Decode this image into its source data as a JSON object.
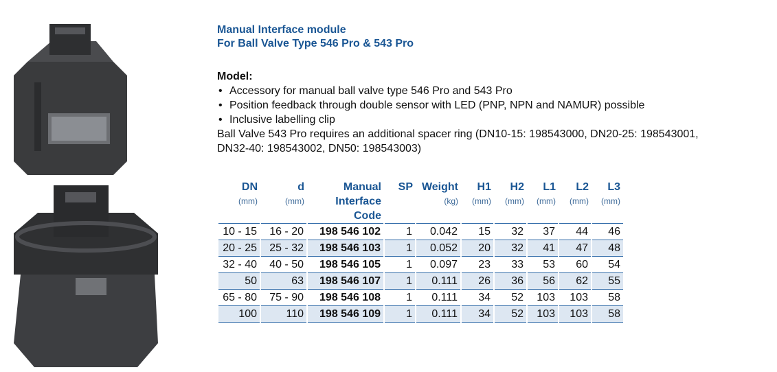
{
  "header": {
    "title": "Manual Interface module",
    "subtitle": "For Ball Valve Type 546 Pro & 543 Pro"
  },
  "model": {
    "heading": "Model:",
    "bullets": [
      "Accessory for manual ball valve type 546 Pro and 543 Pro",
      "Position feedback through double sensor with LED (PNP, NPN and NAMUR) possible",
      "Inclusive labelling clip"
    ],
    "note": "Ball Valve 543 Pro requires an additional spacer ring (DN10-15: 198543000, DN20-25: 198543001, DN32-40: 198543002, DN50: 198543003)"
  },
  "table": {
    "columns": [
      {
        "name": "DN",
        "unit": "(mm)"
      },
      {
        "name": "d",
        "unit": "(mm)"
      },
      {
        "name": "Manual Interface Code"
      },
      {
        "name": "SP"
      },
      {
        "name": "Weight",
        "unit": "(kg)"
      },
      {
        "name": "H1",
        "unit": "(mm)"
      },
      {
        "name": "H2",
        "unit": "(mm)"
      },
      {
        "name": "L1",
        "unit": "(mm)"
      },
      {
        "name": "L2",
        "unit": "(mm)"
      },
      {
        "name": "L3",
        "unit": "(mm)"
      }
    ],
    "rows": [
      [
        "10 - 15",
        "16 - 20",
        "198 546 102",
        "1",
        "0.042",
        "15",
        "32",
        "37",
        "44",
        "46"
      ],
      [
        "20 - 25",
        "25 - 32",
        "198 546 103",
        "1",
        "0.052",
        "20",
        "32",
        "41",
        "47",
        "48"
      ],
      [
        "32 - 40",
        "40 - 50",
        "198 546 105",
        "1",
        "0.097",
        "23",
        "33",
        "53",
        "60",
        "54"
      ],
      [
        "50",
        "63",
        "198 546 107",
        "1",
        "0.111",
        "26",
        "36",
        "56",
        "62",
        "55"
      ],
      [
        "65 - 80",
        "75 - 90",
        "198 546 108",
        "1",
        "0.111",
        "34",
        "52",
        "103",
        "103",
        "58"
      ],
      [
        "100",
        "110",
        "198 546 109",
        "1",
        "0.111",
        "34",
        "52",
        "103",
        "103",
        "58"
      ]
    ]
  }
}
